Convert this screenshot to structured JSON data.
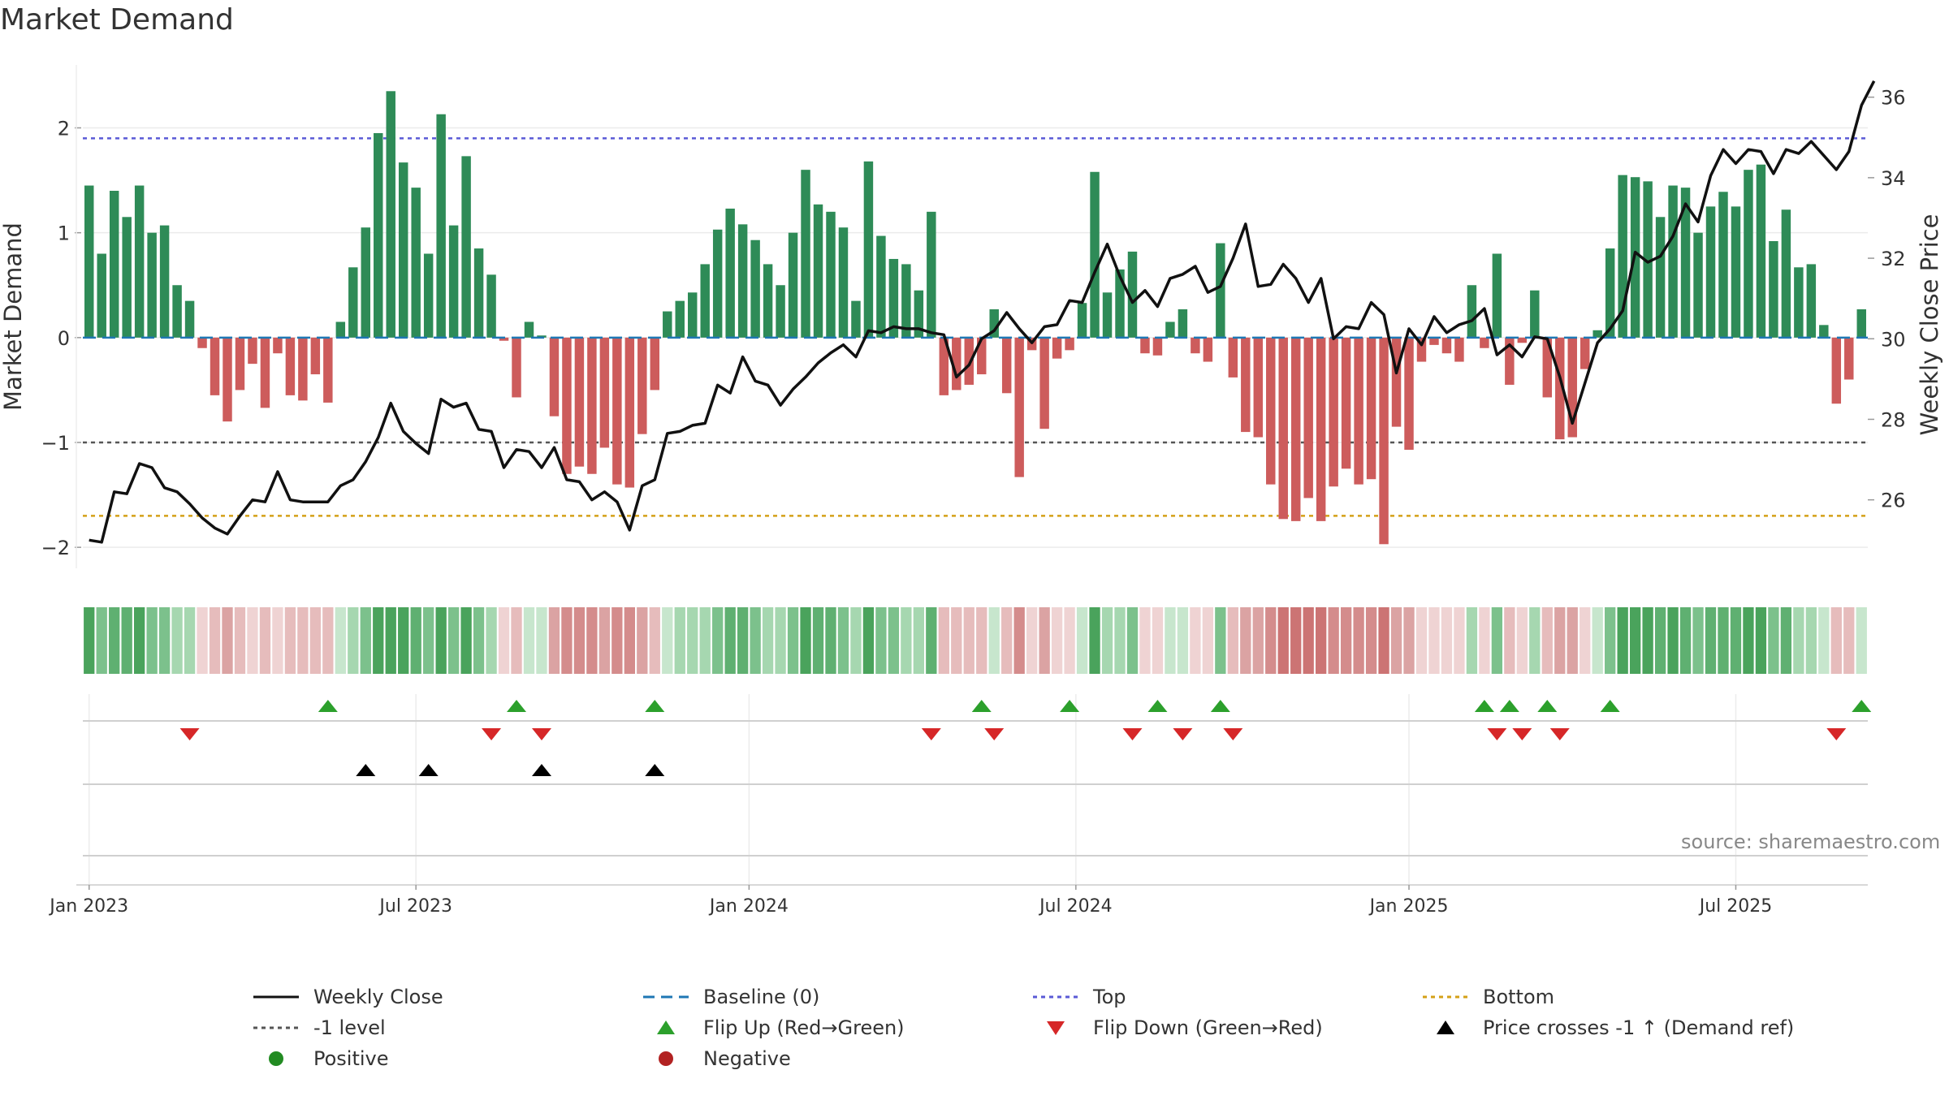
{
  "title": "Market Demand",
  "source": "source: sharemaestro.com",
  "colors": {
    "pos_bar": "#2e8b57",
    "neg_bar": "#cd5c5c",
    "price_line": "#111111",
    "baseline": "#1f77b4",
    "top": "#5a5ad6",
    "bottom": "#d4a017",
    "minus1": "#555555",
    "flip_up": "#2ca02c",
    "flip_down": "#d62728",
    "cross": "#000000",
    "positive_dot": "#228b22",
    "negative_dot": "#b22222"
  },
  "chart_data": {
    "type": "bar+line",
    "title": "Market Demand",
    "start_week": "2022-12-26",
    "ylabel_left": "Market Demand",
    "ylabel_right": "Weekly Close Price",
    "ylim_left": [
      -2.2,
      2.6
    ],
    "ylim_right": [
      24.3,
      36.8
    ],
    "yticks_left": [
      {
        "v": 2,
        "label": "2"
      },
      {
        "v": 1,
        "label": "1"
      },
      {
        "v": 0,
        "label": "0"
      },
      {
        "v": -1,
        "label": "−1"
      },
      {
        "v": -2,
        "label": "−2"
      }
    ],
    "yticks_right": [
      {
        "v": 26,
        "label": "26"
      },
      {
        "v": 28,
        "label": "28"
      },
      {
        "v": 30,
        "label": "30"
      },
      {
        "v": 32,
        "label": "32"
      },
      {
        "v": 34,
        "label": "34"
      },
      {
        "v": 36,
        "label": "36"
      }
    ],
    "xticks": [
      {
        "week": 1,
        "label": "Jan 2023"
      },
      {
        "week": 27,
        "label": "Jul 2023"
      },
      {
        "week": 53.5,
        "label": "Jan 2024"
      },
      {
        "week": 79.5,
        "label": "Jul 2024"
      },
      {
        "week": 106,
        "label": "Jan 2025"
      },
      {
        "week": 132,
        "label": "Jul 2025"
      }
    ],
    "levels": {
      "top": 1.9,
      "minus1": -1.0,
      "bottom": -1.7,
      "baseline": 0
    },
    "demand": [
      1.45,
      0.8,
      1.4,
      1.15,
      1.45,
      1.0,
      1.07,
      0.5,
      0.35,
      -0.1,
      -0.55,
      -0.8,
      -0.5,
      -0.25,
      -0.67,
      -0.15,
      -0.55,
      -0.6,
      -0.35,
      -0.62,
      0.15,
      0.67,
      1.05,
      1.95,
      2.35,
      1.67,
      1.43,
      0.8,
      2.13,
      1.07,
      1.73,
      0.85,
      0.6,
      -0.03,
      -0.57,
      0.15,
      0.02,
      -0.75,
      -1.3,
      -1.23,
      -1.3,
      -1.05,
      -1.4,
      -1.43,
      -0.92,
      -0.5,
      0.25,
      0.35,
      0.43,
      0.7,
      1.03,
      1.23,
      1.08,
      0.93,
      0.7,
      0.5,
      1.0,
      1.6,
      1.27,
      1.2,
      1.05,
      0.35,
      1.68,
      0.97,
      0.75,
      0.7,
      0.45,
      1.2,
      -0.55,
      -0.5,
      -0.45,
      -0.35,
      0.27,
      -0.53,
      -1.33,
      -0.12,
      -0.87,
      -0.2,
      -0.12,
      0.33,
      1.58,
      0.43,
      0.65,
      0.82,
      -0.15,
      -0.17,
      0.15,
      0.27,
      -0.15,
      -0.23,
      0.9,
      -0.38,
      -0.9,
      -0.95,
      -1.4,
      -1.73,
      -1.75,
      -1.53,
      -1.75,
      -1.42,
      -1.25,
      -1.4,
      -1.35,
      -1.97,
      -0.85,
      -1.07,
      -0.23,
      -0.07,
      -0.15,
      -0.23,
      0.5,
      -0.1,
      0.8,
      -0.45,
      -0.05,
      0.45,
      -0.57,
      -0.97,
      -0.95,
      -0.3,
      0.07,
      0.85,
      1.55,
      1.53,
      1.49,
      1.15,
      1.45,
      1.43,
      1.0,
      1.25,
      1.39,
      1.25,
      1.6,
      1.65,
      0.92,
      1.22,
      0.67,
      0.7,
      0.12,
      -0.63,
      -0.4,
      0.27
    ],
    "price": [
      25.0,
      24.95,
      26.2,
      26.15,
      26.9,
      26.8,
      26.3,
      26.2,
      25.9,
      25.55,
      25.3,
      25.15,
      25.6,
      26.0,
      25.95,
      26.7,
      26.0,
      25.95,
      25.95,
      25.95,
      26.35,
      26.5,
      26.95,
      27.55,
      28.4,
      27.7,
      27.4,
      27.15,
      28.5,
      28.3,
      28.4,
      27.75,
      27.7,
      26.8,
      27.25,
      27.2,
      26.8,
      27.3,
      26.5,
      26.45,
      26.0,
      26.2,
      25.95,
      25.25,
      26.35,
      26.5,
      27.65,
      27.7,
      27.85,
      27.9,
      28.85,
      28.65,
      29.55,
      28.95,
      28.85,
      28.35,
      28.75,
      29.05,
      29.4,
      29.65,
      29.85,
      29.55,
      30.2,
      30.15,
      30.3,
      30.25,
      30.25,
      30.15,
      30.1,
      29.05,
      29.35,
      30.0,
      30.2,
      30.65,
      30.25,
      29.9,
      30.3,
      30.35,
      30.95,
      30.9,
      31.65,
      32.35,
      31.55,
      30.9,
      31.2,
      30.8,
      31.5,
      31.6,
      31.8,
      31.15,
      31.3,
      32.0,
      32.85,
      31.3,
      31.35,
      31.85,
      31.5,
      30.9,
      31.5,
      30.0,
      30.3,
      30.25,
      30.9,
      30.6,
      29.15,
      30.25,
      29.85,
      30.55,
      30.15,
      30.35,
      30.45,
      30.75,
      29.6,
      29.85,
      29.55,
      30.05,
      30.0,
      29.05,
      27.9,
      28.9,
      29.9,
      30.25,
      30.7,
      32.15,
      31.9,
      32.05,
      32.55,
      33.35,
      32.9,
      34.05,
      34.7,
      34.35,
      34.7,
      34.65,
      34.1,
      34.7,
      34.6,
      34.9,
      34.55,
      34.2,
      34.65,
      35.8,
      36.4
    ],
    "flip_up_weeks": [
      20,
      35,
      46,
      72,
      79,
      86,
      91,
      112,
      114,
      117,
      122,
      142
    ],
    "flip_down_weeks": [
      9,
      33,
      37,
      68,
      73,
      84,
      88,
      92,
      113,
      115,
      118,
      140
    ],
    "cross_weeks": [
      23,
      28,
      37,
      46
    ]
  },
  "legend": [
    {
      "key": "price",
      "label": "Weekly Close"
    },
    {
      "key": "baseline",
      "label": "Baseline (0)"
    },
    {
      "key": "top",
      "label": "Top"
    },
    {
      "key": "bottom",
      "label": "Bottom"
    },
    {
      "key": "minus1",
      "label": "-1 level"
    },
    {
      "key": "flip_up",
      "label": "Flip Up (Red→Green)"
    },
    {
      "key": "flip_down",
      "label": "Flip Down (Green→Red)"
    },
    {
      "key": "cross",
      "label": "Price crosses -1 ↑ (Demand ref)"
    },
    {
      "key": "positive",
      "label": "Positive"
    },
    {
      "key": "negative",
      "label": "Negative"
    }
  ]
}
